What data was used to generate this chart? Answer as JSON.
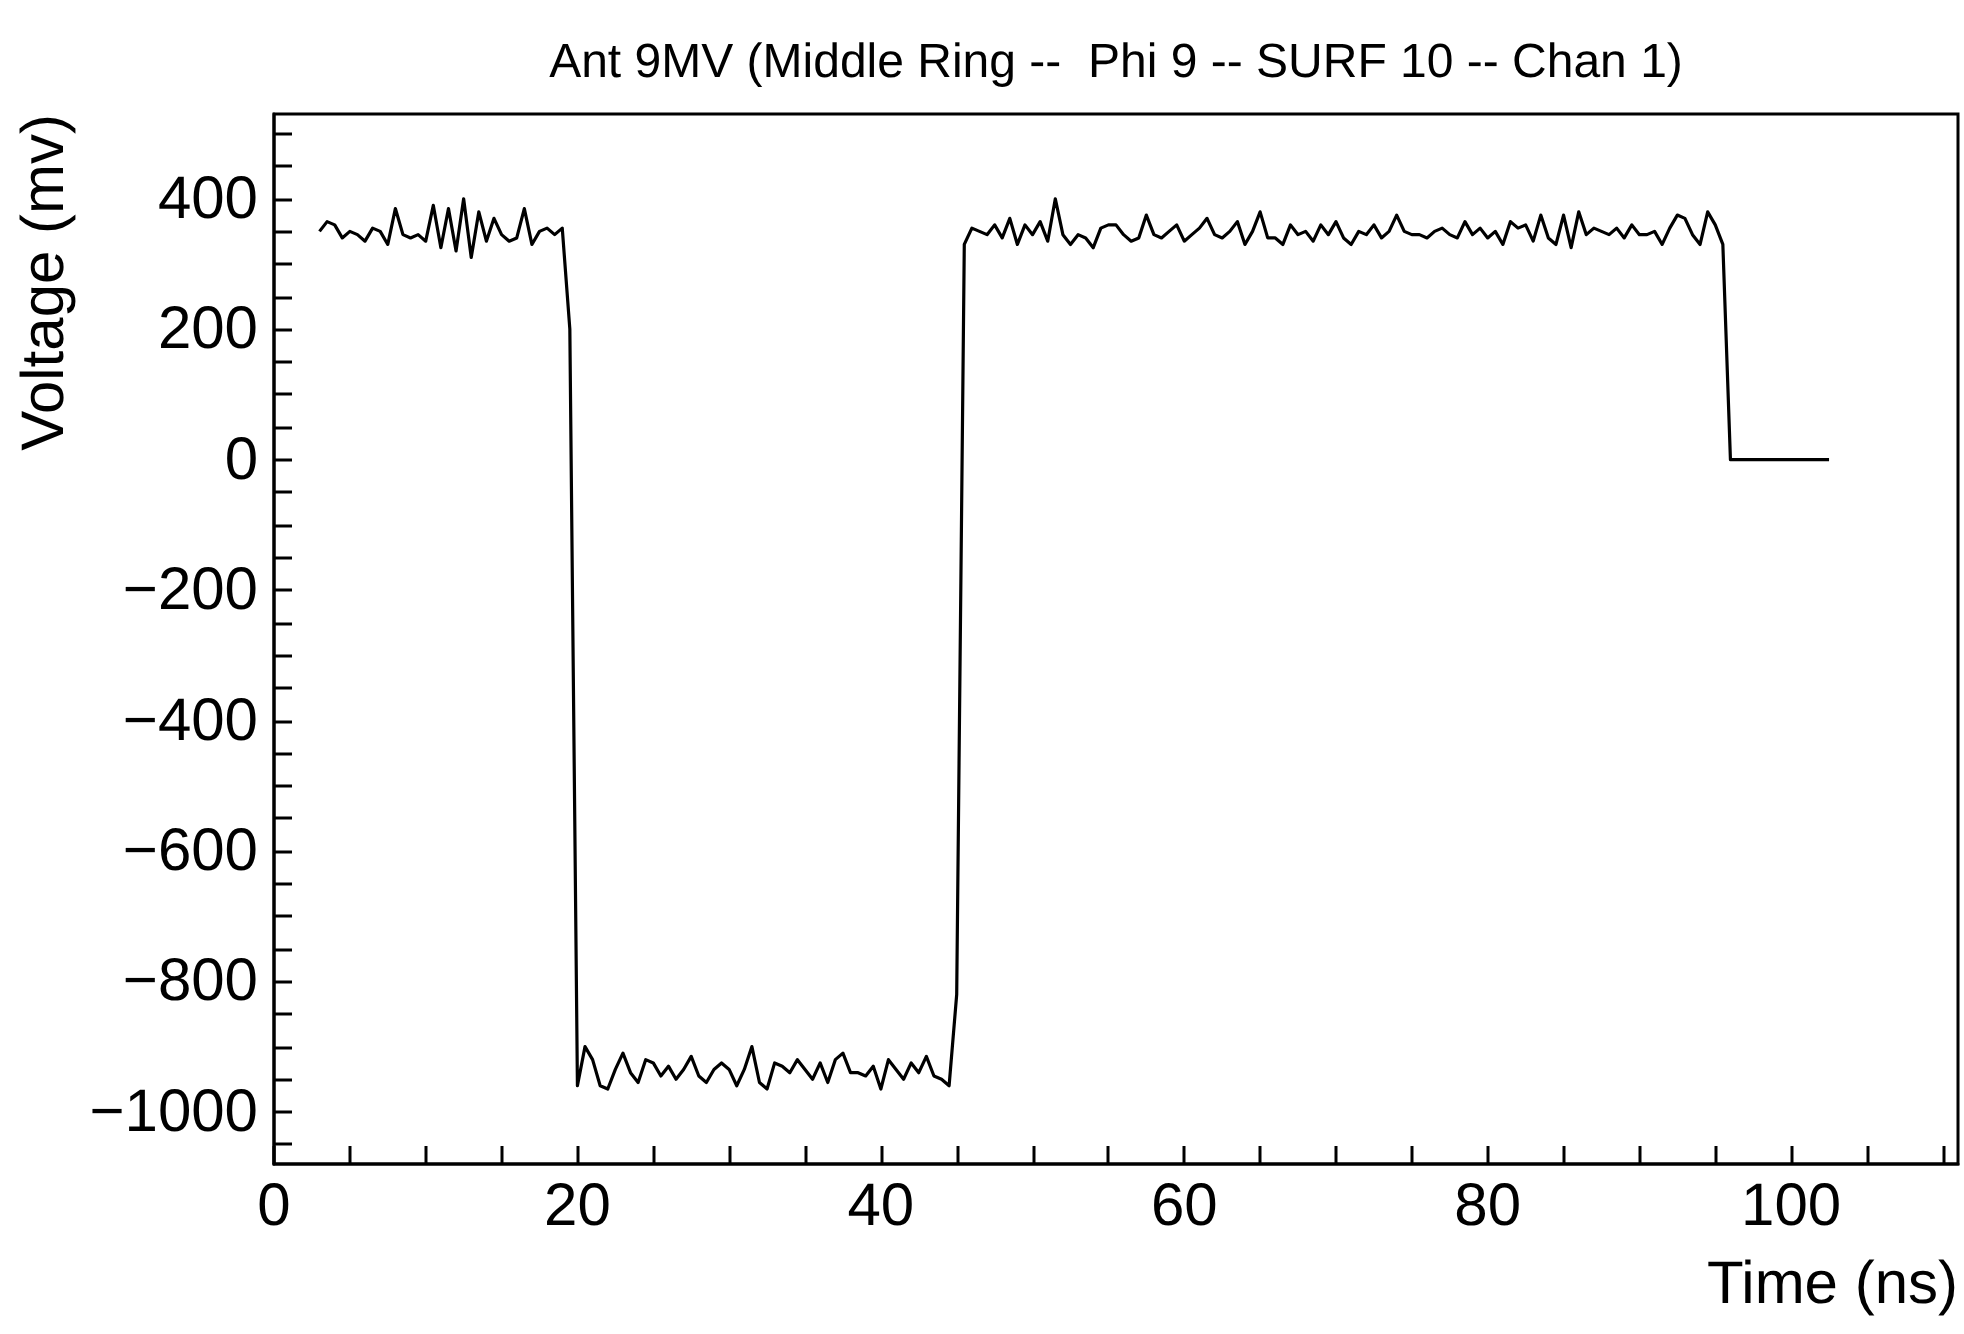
{
  "chart_data": {
    "type": "line",
    "title": "Ant 9MV (Middle Ring --  Phi 9 -- SURF 10 -- Chan 1)",
    "xlabel": "Time (ns)",
    "ylabel": "Voltage (mv)",
    "xlim": [
      0,
      111
    ],
    "ylim": [
      -1080,
      530
    ],
    "xticks": [
      0,
      {
        "value": 5,
        "label": null
      },
      {
        "value": 10,
        "label": null
      },
      {
        "value": 15,
        "label": null
      },
      20,
      {
        "value": 25,
        "label": null
      },
      {
        "value": 30,
        "label": null
      },
      {
        "value": 35,
        "label": null
      },
      40,
      {
        "value": 45,
        "label": null
      },
      {
        "value": 50,
        "label": null
      },
      {
        "value": 55,
        "label": null
      },
      60,
      {
        "value": 65,
        "label": null
      },
      {
        "value": 70,
        "label": null
      },
      {
        "value": 75,
        "label": null
      },
      80,
      {
        "value": 85,
        "label": null
      },
      {
        "value": 90,
        "label": null
      },
      {
        "value": 95,
        "label": null
      },
      100,
      {
        "value": 105,
        "label": null
      },
      {
        "value": 110,
        "label": null
      }
    ],
    "yticks": [
      {
        "value": -1050,
        "label": null
      },
      -1000,
      {
        "value": -950,
        "label": null
      },
      {
        "value": -900,
        "label": null
      },
      {
        "value": -850,
        "label": null
      },
      -800,
      {
        "value": -750,
        "label": null
      },
      {
        "value": -700,
        "label": null
      },
      {
        "value": -650,
        "label": null
      },
      -600,
      {
        "value": -550,
        "label": null
      },
      {
        "value": -500,
        "label": null
      },
      {
        "value": -450,
        "label": null
      },
      -400,
      {
        "value": -350,
        "label": null
      },
      {
        "value": -300,
        "label": null
      },
      {
        "value": -250,
        "label": null
      },
      -200,
      {
        "value": -150,
        "label": null
      },
      {
        "value": -100,
        "label": null
      },
      {
        "value": -50,
        "label": null
      },
      0,
      {
        "value": 50,
        "label": null
      },
      {
        "value": 100,
        "label": null
      },
      {
        "value": 150,
        "label": null
      },
      200,
      {
        "value": 250,
        "label": null
      },
      {
        "value": 300,
        "label": null
      },
      {
        "value": 350,
        "label": null
      },
      400,
      {
        "value": 450,
        "label": null
      },
      {
        "value": 500,
        "label": null
      }
    ],
    "grid": false,
    "marker": "none",
    "line_style": "solid",
    "series": [
      {
        "color": "#000000",
        "x": [
          3.0,
          3.5,
          4.0,
          4.5,
          5.0,
          5.5,
          6.0,
          6.5,
          7.0,
          7.5,
          8.0,
          8.5,
          9.0,
          9.5,
          10.0,
          10.5,
          11.0,
          11.5,
          12.0,
          12.5,
          13.0,
          13.5,
          14.0,
          14.5,
          15.0,
          15.5,
          16.0,
          16.5,
          17.0,
          17.5,
          18.0,
          18.5,
          19.0,
          19.5,
          20.0,
          20.5,
          21.0,
          21.5,
          22.0,
          22.5,
          23.0,
          23.5,
          24.0,
          24.5,
          25.0,
          25.5,
          26.0,
          26.5,
          27.0,
          27.5,
          28.0,
          28.5,
          29.0,
          29.5,
          30.0,
          30.5,
          31.0,
          31.5,
          32.0,
          32.5,
          33.0,
          33.5,
          34.0,
          34.5,
          35.0,
          35.5,
          36.0,
          36.5,
          37.0,
          37.5,
          38.0,
          38.5,
          39.0,
          39.5,
          40.0,
          40.5,
          41.0,
          41.5,
          42.0,
          42.5,
          43.0,
          43.5,
          44.0,
          44.5,
          45.0,
          45.5,
          46.0,
          46.5,
          47.0,
          47.5,
          48.0,
          48.5,
          49.0,
          49.5,
          50.0,
          50.5,
          51.0,
          51.5,
          52.0,
          52.5,
          53.0,
          53.5,
          54.0,
          54.5,
          55.0,
          55.5,
          56.0,
          56.5,
          57.0,
          57.5,
          58.0,
          58.5,
          59.0,
          59.5,
          60.0,
          60.5,
          61.0,
          61.5,
          62.0,
          62.5,
          63.0,
          63.5,
          64.0,
          64.5,
          65.0,
          65.5,
          66.0,
          66.5,
          67.0,
          67.5,
          68.0,
          68.5,
          69.0,
          69.5,
          70.0,
          70.5,
          71.0,
          71.5,
          72.0,
          72.5,
          73.0,
          73.5,
          74.0,
          74.5,
          75.0,
          75.5,
          76.0,
          76.5,
          77.0,
          77.5,
          78.0,
          78.5,
          79.0,
          79.5,
          80.0,
          80.5,
          81.0,
          81.5,
          82.0,
          82.5,
          83.0,
          83.5,
          84.0,
          84.5,
          85.0,
          85.5,
          86.0,
          86.5,
          87.0,
          87.5,
          88.0,
          88.5,
          89.0,
          89.5,
          90.0,
          90.5,
          91.0,
          91.5,
          92.0,
          92.5,
          93.0,
          93.5,
          94.0,
          94.5,
          95.0,
          95.5,
          96.0,
          102.5
        ],
        "values": [
          350,
          365,
          360,
          340,
          350,
          345,
          335,
          355,
          350,
          330,
          385,
          345,
          340,
          345,
          335,
          390,
          325,
          385,
          320,
          400,
          310,
          380,
          335,
          370,
          345,
          335,
          340,
          385,
          330,
          350,
          355,
          345,
          355,
          200,
          -960,
          -900,
          -920,
          -960,
          -965,
          -935,
          -910,
          -940,
          -955,
          -920,
          -925,
          -945,
          -930,
          -950,
          -935,
          -915,
          -945,
          -955,
          -935,
          -925,
          -935,
          -960,
          -935,
          -900,
          -955,
          -965,
          -925,
          -930,
          -940,
          -920,
          -935,
          -950,
          -925,
          -955,
          -920,
          -910,
          -940,
          -940,
          -945,
          -930,
          -965,
          -920,
          -935,
          -950,
          -925,
          -940,
          -915,
          -945,
          -950,
          -960,
          -820,
          330,
          355,
          350,
          345,
          360,
          340,
          370,
          330,
          360,
          345,
          365,
          335,
          400,
          345,
          330,
          345,
          340,
          325,
          355,
          360,
          360,
          345,
          335,
          340,
          375,
          345,
          340,
          350,
          360,
          335,
          345,
          355,
          370,
          345,
          340,
          350,
          365,
          330,
          350,
          380,
          340,
          340,
          330,
          360,
          345,
          350,
          335,
          360,
          345,
          365,
          340,
          330,
          350,
          345,
          360,
          340,
          350,
          375,
          350,
          345,
          345,
          340,
          350,
          355,
          345,
          340,
          365,
          345,
          355,
          340,
          350,
          330,
          365,
          355,
          360,
          335,
          375,
          340,
          330,
          375,
          325,
          380,
          345,
          355,
          350,
          345,
          355,
          340,
          360,
          345,
          345,
          350,
          330,
          355,
          375,
          370,
          345,
          330,
          380,
          360,
          330,
          0,
          0
        ]
      }
    ]
  }
}
